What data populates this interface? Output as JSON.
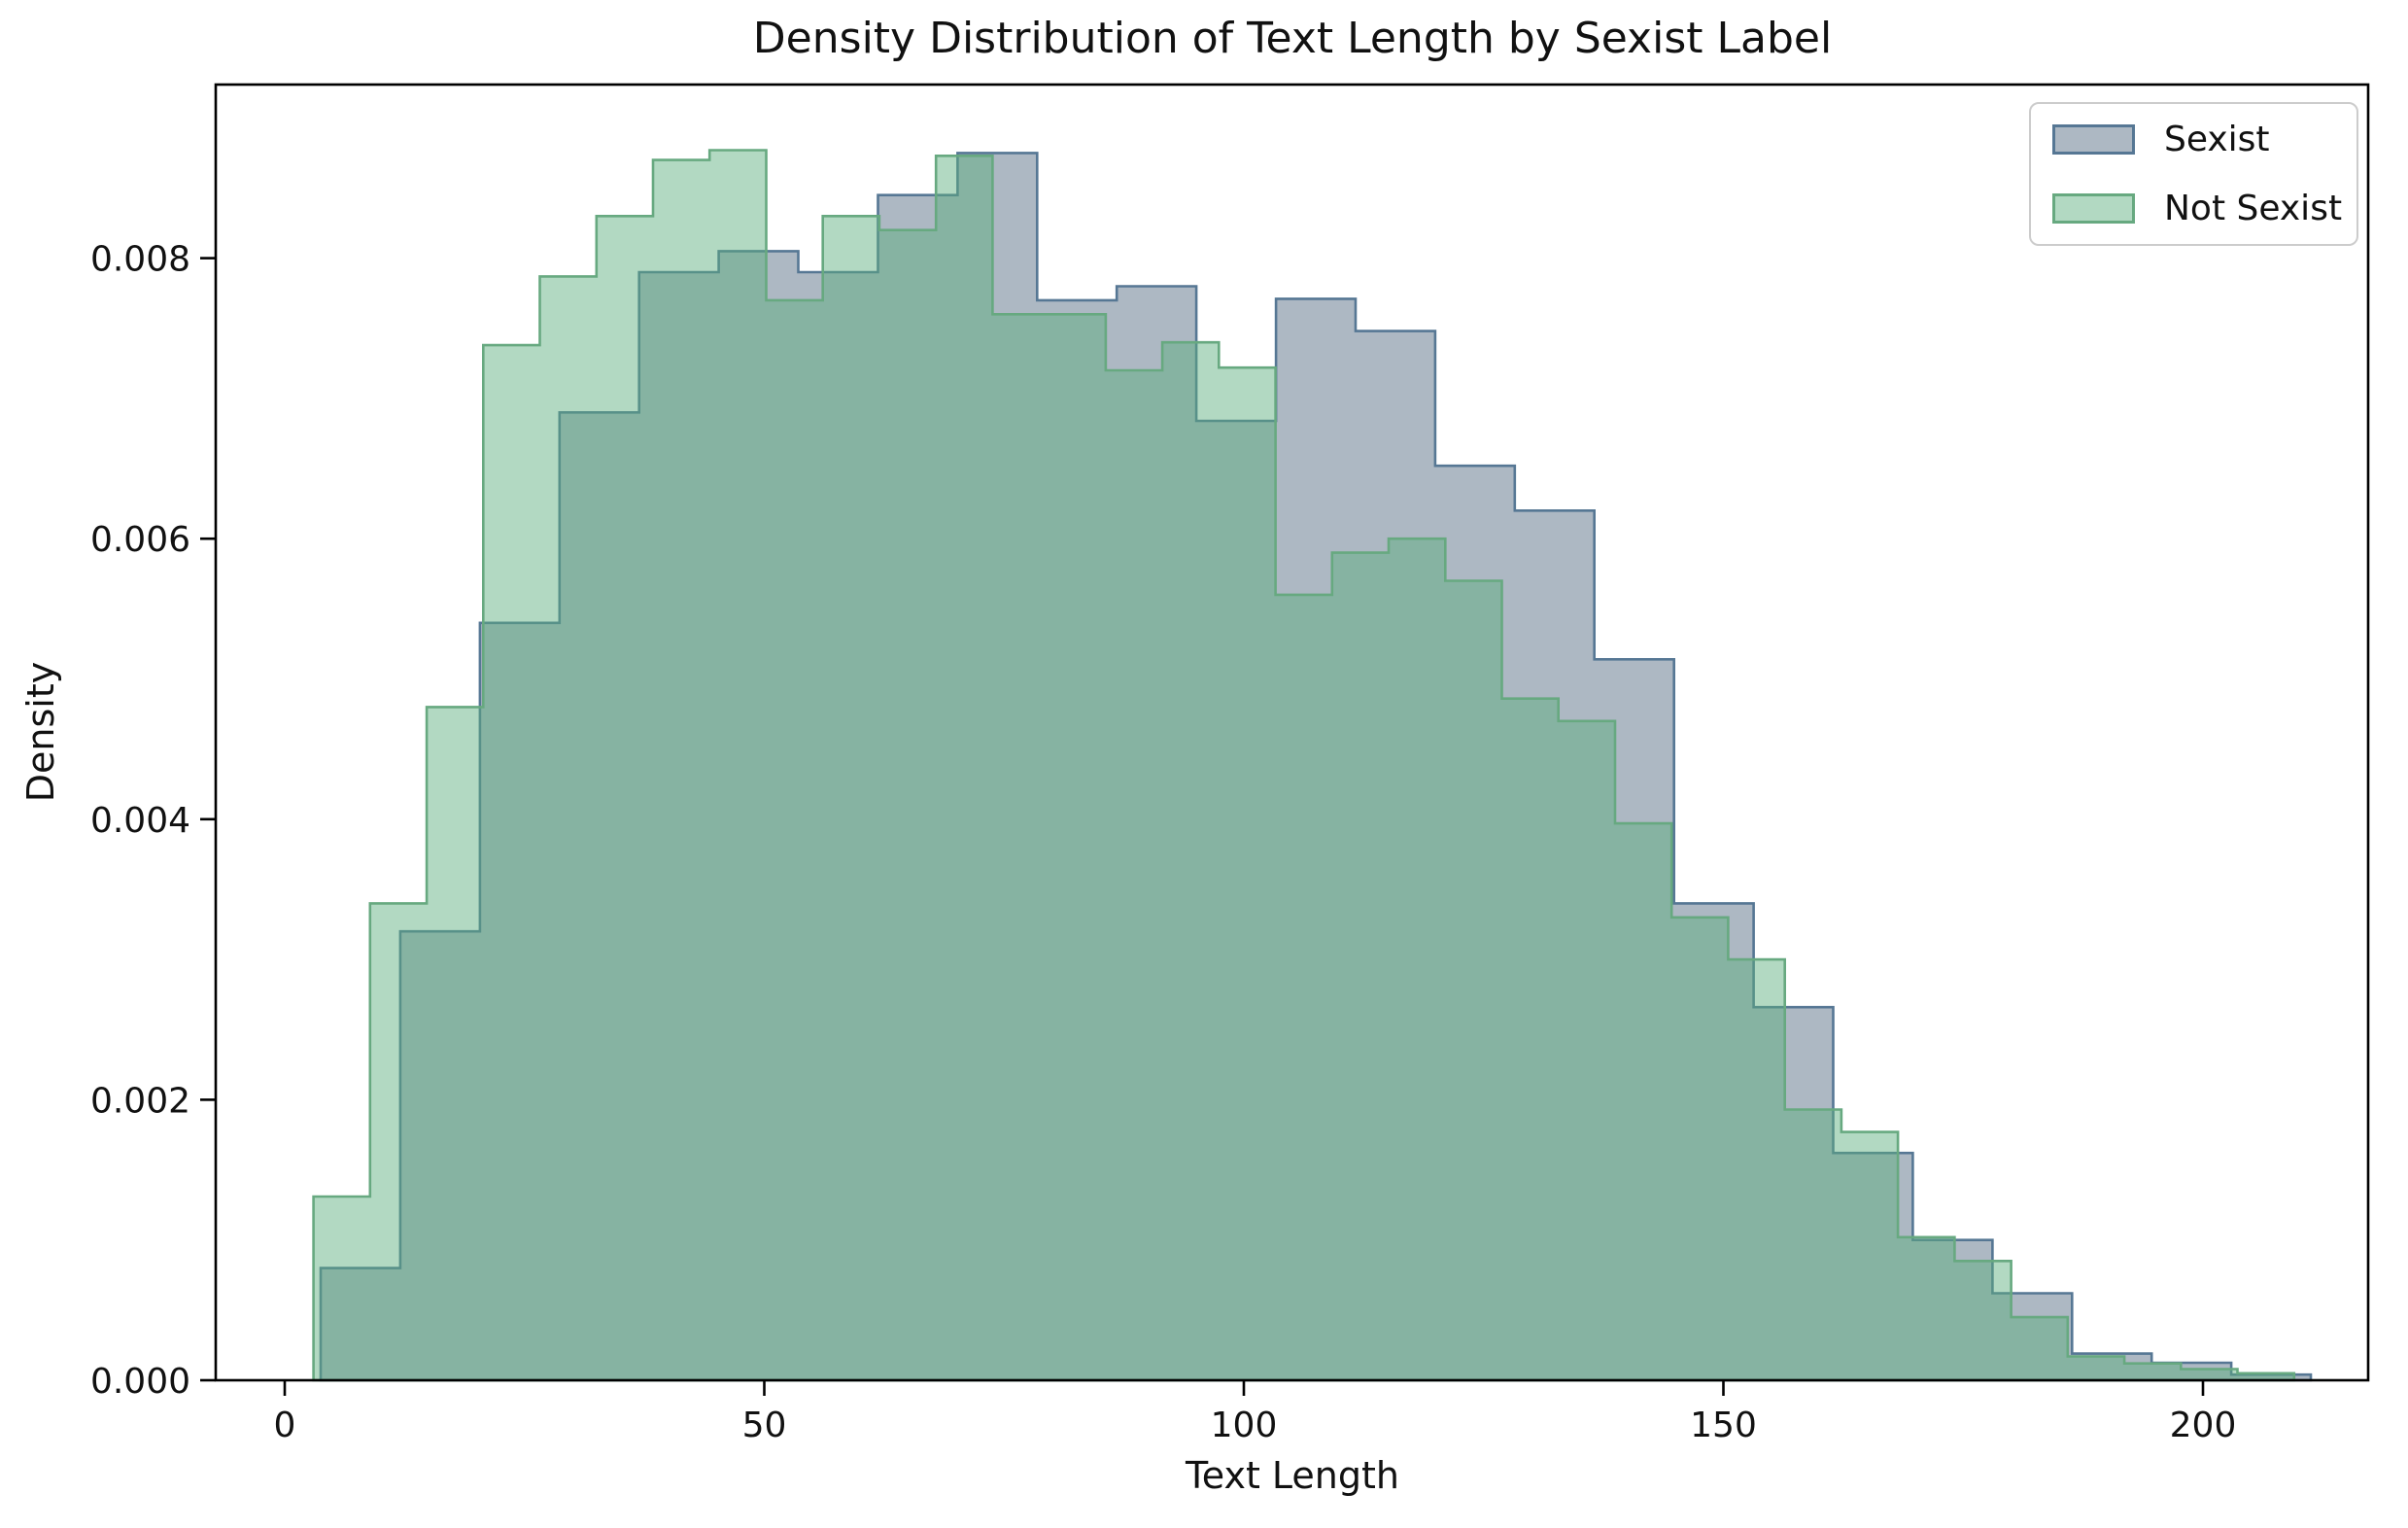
{
  "title": "Density Distribution of Text Length by Sexist Label",
  "axes": {
    "xlabel": "Text Length",
    "ylabel": "Density",
    "x_tick_labels": [
      "0",
      "50",
      "100",
      "150",
      "200"
    ],
    "x_tick_values": [
      0,
      50,
      100,
      150,
      200
    ],
    "y_tick_labels": [
      "0.000",
      "0.002",
      "0.004",
      "0.006",
      "0.008"
    ],
    "y_tick_values": [
      0,
      0.002,
      0.004,
      0.006,
      0.008
    ]
  },
  "legend": {
    "items": [
      {
        "label": "Sexist",
        "fill": "rgba(105,125,145,0.55)",
        "edge": "#567794"
      },
      {
        "label": "Not Sexist",
        "fill": "rgba(92,174,125,0.47)",
        "edge": "#67a980"
      }
    ]
  },
  "colors": {
    "sexist_fill": "rgba(105,125,145,0.55)",
    "sexist_edge": "#567794",
    "not_sexist_fill": "rgba(92,174,125,0.47)",
    "not_sexist_edge": "#67a980",
    "frame": "#000000"
  },
  "chart_data": {
    "type": "bar",
    "subtype": "overlapping-step-density-histograms",
    "title": "Density Distribution of Text Length by Sexist Label",
    "xlabel": "Text Length",
    "ylabel": "Density",
    "xlim": [
      -7.2,
      217.2
    ],
    "ylim": [
      0,
      0.00924
    ],
    "grid": false,
    "legend_position": "upper right",
    "series": [
      {
        "name": "Sexist",
        "bin_start": 3.75,
        "bin_width": 8.3,
        "densities": [
          0.0008,
          0.0032,
          0.0054,
          0.0069,
          0.0079,
          0.00805,
          0.0079,
          0.00845,
          0.00875,
          0.0077,
          0.0078,
          0.00684,
          0.00771,
          0.00748,
          0.00652,
          0.0062,
          0.00514,
          0.0034,
          0.00266,
          0.00162,
          0.001,
          0.00062,
          0.00019,
          0.000125,
          4e-05
        ]
      },
      {
        "name": "Not Sexist",
        "bin_start": 3.0,
        "bin_width": 5.9,
        "densities": [
          0.00131,
          0.0034,
          0.0048,
          0.00738,
          0.00787,
          0.0083,
          0.0087,
          0.00877,
          0.0077,
          0.0083,
          0.0082,
          0.00873,
          0.0076,
          0.0076,
          0.0072,
          0.0074,
          0.00722,
          0.0056,
          0.0059,
          0.006,
          0.0057,
          0.00486,
          0.0047,
          0.00397,
          0.0033,
          0.003,
          0.00193,
          0.00177,
          0.00102,
          0.00085,
          0.00045,
          0.00017,
          0.00012,
          8e-05,
          5e-05
        ]
      }
    ]
  }
}
